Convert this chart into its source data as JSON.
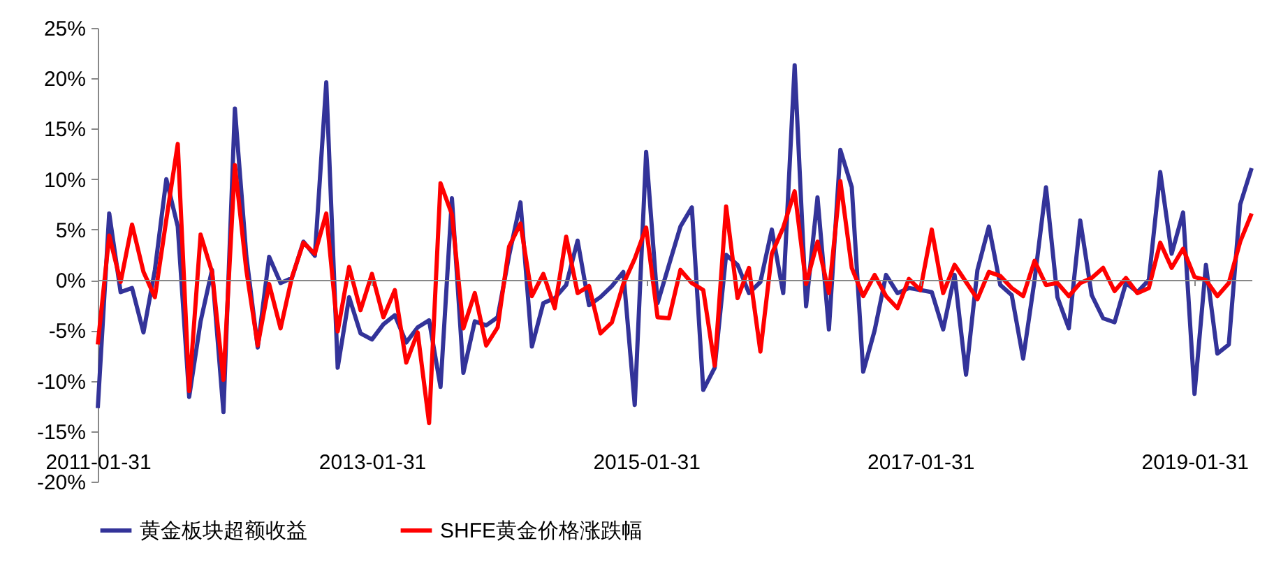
{
  "chart_data": {
    "type": "line",
    "categories": [
      "2011-01-31",
      null,
      null,
      null,
      null,
      null,
      null,
      null,
      null,
      null,
      null,
      null,
      null,
      null,
      null,
      null,
      null,
      null,
      null,
      null,
      null,
      null,
      null,
      null,
      "2013-01-31",
      null,
      null,
      null,
      null,
      null,
      null,
      null,
      null,
      null,
      null,
      null,
      null,
      null,
      null,
      null,
      null,
      null,
      null,
      null,
      null,
      null,
      null,
      null,
      "2015-01-31",
      null,
      null,
      null,
      null,
      null,
      null,
      null,
      null,
      null,
      null,
      null,
      null,
      null,
      null,
      null,
      null,
      null,
      null,
      null,
      null,
      null,
      null,
      null,
      "2017-01-31",
      null,
      null,
      null,
      null,
      null,
      null,
      null,
      null,
      null,
      null,
      null,
      null,
      null,
      null,
      null,
      null,
      null,
      null,
      null,
      null,
      null,
      null,
      null,
      "2019-01-31",
      null,
      null,
      null,
      null,
      null
    ],
    "series": [
      {
        "name": "黄金板块超额收益",
        "color": "#333399",
        "values": [
          -12.7,
          6.6,
          -1.2,
          -0.8,
          -5.2,
          1.0,
          10.0,
          5.3,
          -11.6,
          -4.1,
          1.0,
          -13.1,
          17.0,
          2.4,
          -6.7,
          2.3,
          -0.3,
          0.2,
          3.8,
          2.4,
          19.6,
          -8.7,
          -1.7,
          -5.3,
          -5.9,
          -4.4,
          -3.5,
          -6.2,
          -4.7,
          -4.0,
          -10.6,
          8.1,
          -9.2,
          -4.1,
          -4.5,
          -3.7,
          2.4,
          7.7,
          -6.6,
          -2.3,
          -1.8,
          -0.5,
          3.9,
          -2.5,
          -1.7,
          -0.6,
          0.8,
          -12.4,
          12.7,
          -2.3,
          1.5,
          5.3,
          7.2,
          -10.9,
          -8.7,
          2.5,
          1.5,
          -1.3,
          -0.2,
          5.0,
          -1.3,
          21.3,
          -2.6,
          8.2,
          -4.9,
          12.9,
          9.2,
          -9.1,
          -5.0,
          0.5,
          -1.3,
          -0.8,
          -1.0,
          -1.2,
          -4.9,
          0.5,
          -9.4,
          1.0,
          5.3,
          -0.5,
          -1.5,
          -7.8,
          0.0,
          9.2,
          -1.7,
          -4.8,
          5.9,
          -1.5,
          -3.8,
          -4.2,
          -0.3,
          -1.2,
          0.0,
          10.7,
          2.6,
          6.7,
          -11.3,
          1.5,
          -7.3,
          -6.4,
          7.5,
          11.1
        ]
      },
      {
        "name": "SHFE黄金价格涨跌幅",
        "color": "#ff0000",
        "values": [
          -6.4,
          4.4,
          -0.2,
          5.5,
          0.8,
          -1.7,
          6.0,
          13.5,
          -11.0,
          4.5,
          0.8,
          -9.9,
          11.4,
          1.0,
          -6.5,
          -0.4,
          -4.8,
          0.3,
          3.7,
          2.6,
          6.6,
          -5.1,
          1.3,
          -3.0,
          0.6,
          -3.7,
          -1.0,
          -8.2,
          -5.2,
          -14.2,
          9.6,
          6.5,
          -4.8,
          -1.3,
          -6.5,
          -4.7,
          3.3,
          5.6,
          -1.6,
          0.6,
          -2.8,
          4.3,
          -1.3,
          -0.6,
          -5.3,
          -4.2,
          -0.4,
          2.1,
          5.2,
          -3.7,
          -3.8,
          1.0,
          -0.3,
          -1.0,
          -8.5,
          7.3,
          -1.8,
          1.2,
          -7.1,
          2.6,
          5.2,
          8.8,
          -0.4,
          3.8,
          -1.3,
          9.8,
          1.2,
          -1.6,
          0.5,
          -1.6,
          -2.8,
          0.1,
          -1.0,
          5.0,
          -1.3,
          1.5,
          -0.2,
          -1.9,
          0.8,
          0.4,
          -0.8,
          -1.6,
          1.9,
          -0.5,
          -0.3,
          -1.6,
          -0.3,
          0.2,
          1.2,
          -1.1,
          0.2,
          -1.3,
          -0.8,
          3.7,
          1.2,
          3.1,
          0.3,
          0.0,
          -1.6,
          -0.3,
          3.8,
          6.6
        ]
      }
    ],
    "ylim": [
      -20,
      25
    ],
    "yticks": [
      {
        "value": -20,
        "label": "-20%"
      },
      {
        "value": -15,
        "label": "-15%"
      },
      {
        "value": -10,
        "label": "-10%"
      },
      {
        "value": -5,
        "label": "-5%"
      },
      {
        "value": 0,
        "label": "0%"
      },
      {
        "value": 5,
        "label": "5%"
      },
      {
        "value": 10,
        "label": "10%"
      },
      {
        "value": 15,
        "label": "15%"
      },
      {
        "value": 20,
        "label": "20%"
      },
      {
        "value": 25,
        "label": "25%"
      }
    ],
    "legend": "bottom",
    "marker": "none",
    "line_style": "solid"
  }
}
